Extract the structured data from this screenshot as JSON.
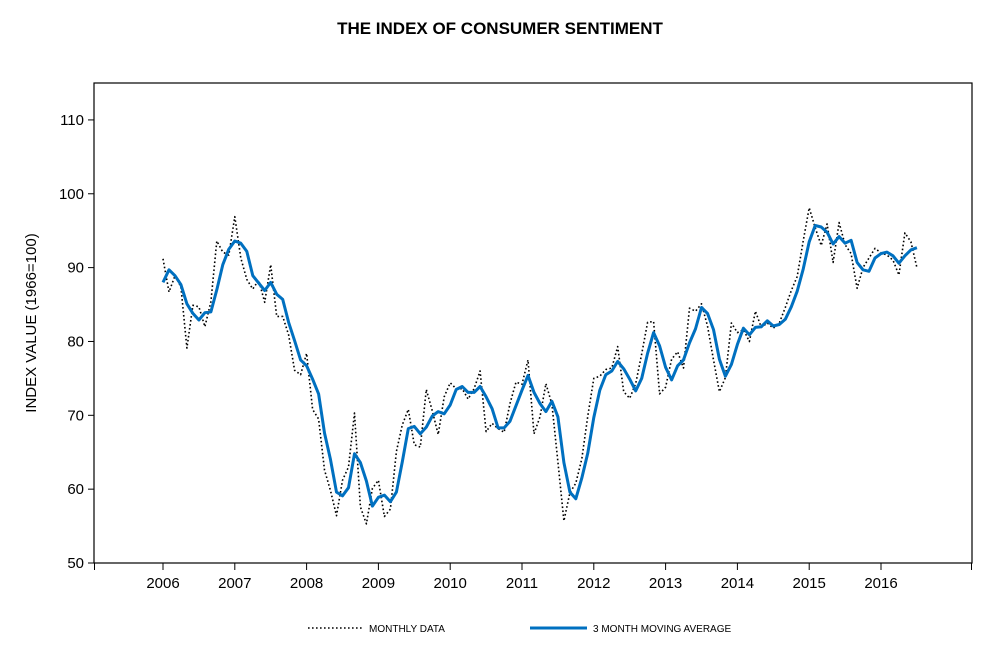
{
  "chart_data": {
    "type": "line",
    "title": "THE INDEX OF CONSUMER SENTIMENT",
    "xlabel": "",
    "ylabel": "INDEX VALUE (1966=100)",
    "ylim": [
      50,
      115
    ],
    "yticks": [
      50,
      60,
      70,
      80,
      90,
      100,
      110
    ],
    "xticks": [
      "2006",
      "2007",
      "2008",
      "2009",
      "2010",
      "2011",
      "2012",
      "2013",
      "2014",
      "2015",
      "2016"
    ],
    "x_start": "2006-01",
    "x_end": "2016-07",
    "legend_position": "bottom",
    "grid": false,
    "series": [
      {
        "name": "MONTHLY DATA",
        "style": "dotted",
        "color": "#000000",
        "values": [
          91.2,
          86.7,
          88.9,
          87.4,
          79.1,
          84.9,
          84.7,
          82.0,
          85.4,
          93.6,
          92.1,
          91.7,
          96.9,
          91.3,
          88.4,
          87.1,
          88.3,
          85.3,
          90.4,
          83.4,
          83.4,
          80.9,
          76.1,
          75.5,
          78.4,
          70.8,
          69.5,
          62.6,
          59.8,
          56.4,
          61.2,
          63.0,
          70.3,
          57.6,
          55.3,
          60.1,
          61.2,
          56.3,
          57.3,
          65.1,
          68.7,
          70.8,
          66.0,
          65.7,
          73.5,
          70.6,
          67.4,
          72.5,
          74.4,
          73.6,
          73.6,
          72.2,
          73.6,
          76.0,
          67.8,
          68.9,
          68.2,
          67.7,
          71.6,
          74.5,
          74.2,
          77.5,
          67.5,
          69.8,
          74.3,
          71.5,
          63.7,
          55.7,
          59.5,
          60.8,
          64.1,
          69.9,
          75.0,
          75.3,
          76.2,
          76.4,
          79.3,
          73.2,
          72.3,
          74.3,
          78.3,
          82.6,
          82.7,
          72.9,
          73.8,
          77.6,
          78.6,
          76.4,
          84.5,
          84.1,
          85.1,
          82.1,
          77.5,
          73.2,
          75.1,
          82.5,
          81.2,
          81.6,
          80.0,
          84.1,
          81.9,
          82.5,
          81.8,
          82.5,
          84.6,
          86.9,
          88.8,
          93.6,
          98.1,
          95.4,
          93.0,
          95.9,
          90.7,
          96.1,
          93.1,
          91.9,
          87.2,
          90.0,
          91.3,
          92.6,
          92.0,
          91.7,
          91.0,
          89.0,
          94.7,
          93.5,
          90.0
        ]
      },
      {
        "name": "3 MONTH MOVING AVERAGE",
        "style": "solid",
        "color": "#0070c0",
        "values": [
          88.0,
          89.7,
          88.9,
          87.7,
          85.1,
          83.8,
          82.9,
          83.9,
          84.0,
          87.0,
          90.4,
          92.5,
          93.6,
          93.3,
          92.2,
          88.9,
          87.9,
          86.9,
          88.0,
          86.4,
          85.7,
          82.6,
          80.1,
          77.5,
          76.7,
          74.9,
          72.9,
          67.6,
          64.0,
          59.6,
          59.1,
          60.2,
          64.8,
          63.6,
          61.1,
          57.7,
          58.9,
          59.2,
          58.3,
          59.6,
          63.7,
          68.2,
          68.5,
          67.5,
          68.4,
          69.9,
          70.5,
          70.2,
          71.4,
          73.5,
          73.9,
          73.1,
          73.1,
          73.9,
          72.5,
          70.9,
          68.3,
          68.3,
          69.2,
          71.3,
          73.4,
          75.4,
          73.1,
          71.6,
          70.5,
          71.9,
          69.8,
          63.6,
          59.6,
          58.7,
          61.5,
          64.9,
          69.7,
          73.4,
          75.5,
          76.0,
          77.3,
          76.3,
          74.9,
          73.3,
          75.0,
          78.4,
          81.2,
          79.4,
          76.5,
          74.8,
          76.7,
          77.5,
          79.8,
          81.7,
          84.6,
          83.8,
          81.6,
          77.6,
          75.3,
          76.9,
          79.6,
          81.8,
          80.9,
          81.9,
          82.0,
          82.8,
          82.1,
          82.3,
          83.0,
          84.7,
          86.8,
          89.8,
          93.5,
          95.7,
          95.5,
          94.8,
          93.2,
          94.2,
          93.3,
          93.7,
          90.7,
          89.7,
          89.5,
          91.3,
          91.9,
          92.1,
          91.6,
          90.6,
          91.6,
          92.4,
          92.7
        ]
      }
    ]
  }
}
